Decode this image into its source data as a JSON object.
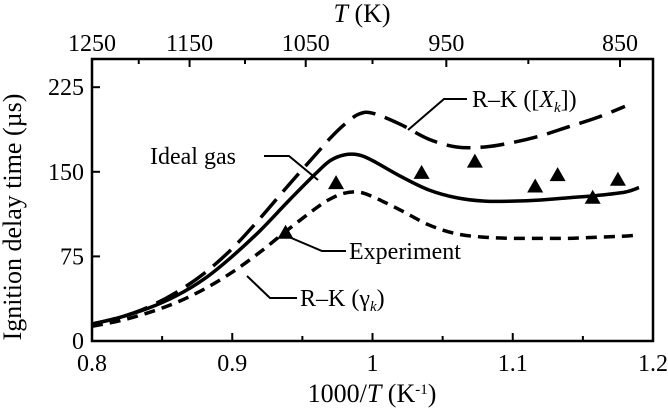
{
  "chart_data": {
    "type": "line",
    "xlabel": "1000/T (K-1)",
    "ylabel": "Ignition delay time (µs)",
    "xlim": [
      0.8,
      1.2
    ],
    "ylim": [
      0,
      250
    ],
    "x_ticks": [
      "0.8",
      "0.9",
      "1",
      "1.1",
      "1.2"
    ],
    "y_ticks": [
      "0",
      "75",
      "150",
      "225"
    ],
    "top_axis": {
      "label": "T (K)",
      "ticks": [
        "1250",
        "1150",
        "1050",
        "950",
        "850"
      ],
      "tick_values_K": [
        1250,
        1150,
        1050,
        950,
        850
      ]
    },
    "grid": false,
    "legend": "none",
    "series": [
      {
        "name": "Ideal gas",
        "style": "solid",
        "x": [
          0.8,
          0.82,
          0.84,
          0.86,
          0.88,
          0.9,
          0.92,
          0.94,
          0.96,
          0.97,
          0.98,
          0.99,
          1.0,
          1.02,
          1.04,
          1.06,
          1.08,
          1.1,
          1.12,
          1.14,
          1.16,
          1.18,
          1.19
        ],
        "values": [
          15,
          21,
          29,
          40,
          55,
          75,
          98,
          124,
          149,
          160,
          165,
          165,
          160,
          146,
          134,
          127,
          124,
          124,
          125,
          127,
          129,
          132,
          136
        ]
      },
      {
        "name": "R–K ([Xk])",
        "style": "long-dash",
        "x": [
          0.8,
          0.82,
          0.84,
          0.86,
          0.88,
          0.9,
          0.92,
          0.94,
          0.96,
          0.97,
          0.98,
          0.99,
          1.0,
          1.02,
          1.04,
          1.06,
          1.08,
          1.1,
          1.12,
          1.14,
          1.16,
          1.18
        ],
        "values": [
          15,
          21,
          30,
          43,
          60,
          82,
          109,
          138,
          166,
          180,
          192,
          201,
          202,
          192,
          179,
          172,
          172,
          176,
          182,
          190,
          198,
          208
        ]
      },
      {
        "name": "R–K (γk)",
        "style": "short-dash",
        "x": [
          0.8,
          0.82,
          0.84,
          0.86,
          0.88,
          0.9,
          0.92,
          0.94,
          0.96,
          0.97,
          0.98,
          0.99,
          1.0,
          1.02,
          1.04,
          1.06,
          1.08,
          1.1,
          1.12,
          1.14,
          1.16,
          1.18,
          1.19
        ],
        "values": [
          13,
          18,
          25,
          34,
          46,
          61,
          79,
          99,
          118,
          126,
          131,
          132,
          128,
          116,
          103,
          95,
          92,
          91,
          91,
          91,
          92,
          93,
          94
        ]
      },
      {
        "name": "Experiment",
        "style": "triangles",
        "x": [
          0.938,
          0.974,
          1.035,
          1.073,
          1.116,
          1.132,
          1.157,
          1.175
        ],
        "values": [
          96,
          140,
          149,
          159,
          137,
          147,
          127,
          143
        ]
      }
    ],
    "annotations": [
      {
        "text": "R–K ([Xk])",
        "points_to": "R–K ([Xk])"
      },
      {
        "text": "Ideal gas",
        "points_to": "Ideal gas"
      },
      {
        "text": "Experiment",
        "points_to": "Experiment"
      },
      {
        "text": "R–K (γk)",
        "points_to": "R–K (γk)"
      }
    ]
  }
}
